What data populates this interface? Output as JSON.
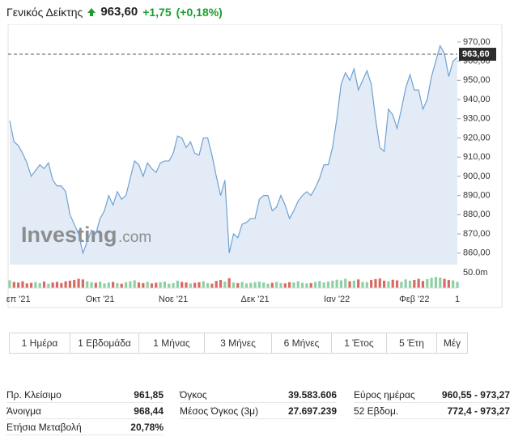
{
  "header": {
    "title": "Γενικός Δείκτης",
    "price": "963,60",
    "change": "+1,75",
    "change_pct": "(+0,18%)"
  },
  "chart_data": [
    {
      "type": "line",
      "color": "#6fa1d2",
      "fill": "#e3ecf6",
      "watermark": "Investing",
      "watermark_suffix": ".com",
      "current": {
        "value": 963.6,
        "label": "963,60"
      },
      "ylim": [
        854,
        975
      ],
      "yticks": [
        {
          "value": 860,
          "label": "860,00"
        },
        {
          "value": 870,
          "label": "870,00"
        },
        {
          "value": 880,
          "label": "880,00"
        },
        {
          "value": 890,
          "label": "890,00"
        },
        {
          "value": 900,
          "label": "900,00"
        },
        {
          "value": 910,
          "label": "910,00"
        },
        {
          "value": 920,
          "label": "920,00"
        },
        {
          "value": 930,
          "label": "930,00"
        },
        {
          "value": 940,
          "label": "940,00"
        },
        {
          "value": 950,
          "label": "950,00"
        },
        {
          "value": 960,
          "label": "960,00"
        },
        {
          "value": 970,
          "label": "970,00"
        }
      ],
      "categories": [
        null,
        null,
        "επ '21",
        null,
        null,
        null,
        null,
        null,
        null,
        null,
        null,
        null,
        null,
        null,
        null,
        null,
        null,
        null,
        null,
        null,
        null,
        "Οκτ '21",
        null,
        null,
        null,
        null,
        null,
        null,
        null,
        null,
        null,
        null,
        null,
        null,
        null,
        null,
        null,
        null,
        "Νοε '21",
        null,
        null,
        null,
        null,
        null,
        null,
        null,
        null,
        null,
        null,
        null,
        null,
        null,
        null,
        null,
        null,
        null,
        null,
        "Δεκ '21",
        null,
        null,
        null,
        null,
        null,
        null,
        null,
        null,
        null,
        null,
        null,
        null,
        null,
        null,
        null,
        null,
        null,
        null,
        "Ιαν '22",
        null,
        null,
        null,
        null,
        null,
        null,
        null,
        null,
        null,
        null,
        null,
        null,
        null,
        null,
        null,
        null,
        null,
        "Φεβ '22",
        null,
        null,
        null,
        null,
        null,
        null,
        null,
        null,
        null,
        "1"
      ],
      "values": [
        929,
        918,
        916,
        912,
        907,
        900,
        903,
        906,
        904,
        907,
        898,
        895,
        895,
        892,
        880,
        875,
        870,
        860,
        866,
        872,
        870,
        878,
        882,
        890,
        885,
        892,
        888,
        890,
        899,
        908,
        906,
        900,
        907,
        904,
        902,
        907,
        908,
        908,
        912,
        921,
        920,
        915,
        918,
        912,
        911,
        920,
        920,
        911,
        900,
        890,
        898,
        860,
        870,
        868,
        875,
        876,
        878,
        878,
        888,
        890,
        890,
        882,
        884,
        890,
        885,
        878,
        882,
        887,
        890,
        892,
        890,
        894,
        899,
        906,
        906,
        915,
        930,
        948,
        954,
        950,
        956,
        945,
        950,
        955,
        948,
        930,
        915,
        913,
        935,
        932,
        925,
        935,
        946,
        953,
        945,
        945,
        935,
        940,
        952,
        960,
        968,
        964,
        952,
        960,
        962
      ]
    },
    {
      "type": "bar",
      "ylim": [
        0,
        68
      ],
      "yticks": [
        {
          "value": 50,
          "label": "50.0m"
        }
      ],
      "values": [
        25,
        20,
        18,
        22,
        15,
        17,
        19,
        16,
        21,
        14,
        18,
        20,
        16,
        22,
        24,
        26,
        30,
        28,
        22,
        19,
        17,
        21,
        15,
        18,
        20,
        16,
        14,
        19,
        22,
        25,
        18,
        16,
        20,
        15,
        17,
        19,
        21,
        14,
        16,
        24,
        20,
        18,
        15,
        17,
        19,
        22,
        16,
        14,
        23,
        26,
        21,
        32,
        18,
        16,
        20,
        15,
        17,
        19,
        21,
        18,
        14,
        17,
        20,
        16,
        15,
        19,
        18,
        22,
        17,
        15,
        16,
        20,
        23,
        18,
        21,
        24,
        27,
        25,
        30,
        22,
        24,
        28,
        20,
        19,
        26,
        29,
        31,
        24,
        22,
        27,
        25,
        20,
        28,
        24,
        26,
        30,
        23,
        29,
        33,
        36,
        34,
        30,
        26,
        25,
        20
      ],
      "colors": [
        "#8fcfa6",
        "#d76b63",
        "#d76b63",
        "#d76b63",
        "#d76b63",
        "#d76b63",
        "#8fcfa6",
        "#8fcfa6",
        "#d76b63",
        "#8fcfa6",
        "#d76b63",
        "#d76b63",
        "#d76b63",
        "#d76b63",
        "#d76b63",
        "#d76b63",
        "#d76b63",
        "#d76b63",
        "#8fcfa6",
        "#8fcfa6",
        "#d76b63",
        "#8fcfa6",
        "#8fcfa6",
        "#8fcfa6",
        "#d76b63",
        "#8fcfa6",
        "#d76b63",
        "#8fcfa6",
        "#8fcfa6",
        "#8fcfa6",
        "#d76b63",
        "#d76b63",
        "#8fcfa6",
        "#d76b63",
        "#d76b63",
        "#8fcfa6",
        "#8fcfa6",
        "#8fcfa6",
        "#8fcfa6",
        "#8fcfa6",
        "#d76b63",
        "#d76b63",
        "#8fcfa6",
        "#d76b63",
        "#d76b63",
        "#8fcfa6",
        "#8fcfa6",
        "#d76b63",
        "#d76b63",
        "#d76b63",
        "#8fcfa6",
        "#d76b63",
        "#8fcfa6",
        "#d76b63",
        "#8fcfa6",
        "#8fcfa6",
        "#8fcfa6",
        "#8fcfa6",
        "#8fcfa6",
        "#8fcfa6",
        "#8fcfa6",
        "#d76b63",
        "#8fcfa6",
        "#8fcfa6",
        "#d76b63",
        "#d76b63",
        "#8fcfa6",
        "#8fcfa6",
        "#8fcfa6",
        "#8fcfa6",
        "#d76b63",
        "#8fcfa6",
        "#8fcfa6",
        "#8fcfa6",
        "#8fcfa6",
        "#8fcfa6",
        "#8fcfa6",
        "#8fcfa6",
        "#8fcfa6",
        "#d76b63",
        "#8fcfa6",
        "#d76b63",
        "#8fcfa6",
        "#8fcfa6",
        "#d76b63",
        "#d76b63",
        "#d76b63",
        "#d76b63",
        "#8fcfa6",
        "#d76b63",
        "#d76b63",
        "#8fcfa6",
        "#8fcfa6",
        "#8fcfa6",
        "#d76b63",
        "#d76b63",
        "#d76b63",
        "#8fcfa6",
        "#8fcfa6",
        "#8fcfa6",
        "#8fcfa6",
        "#d76b63",
        "#d76b63",
        "#8fcfa6",
        "#8fcfa6"
      ]
    }
  ],
  "range_buttons": [
    "1 Ημέρα",
    "1 Εβδομάδα",
    "1 Μήνας",
    "3 Μήνες",
    "6 Μήνες",
    "1 Έτος",
    "5 Έτη",
    "Μέγ"
  ],
  "stats": [
    [
      [
        "Πρ. Κλείσιμο",
        "961,85"
      ],
      [
        "Άνοιγμα",
        "968,44"
      ],
      [
        "Ετήσια Μεταβολή",
        "20,78%"
      ]
    ],
    [
      [
        "Όγκος",
        "39.583.606"
      ],
      [
        "Μέσος Όγκος (3μ)",
        "27.697.239"
      ]
    ],
    [
      [
        "Εύρος ημέρας",
        "960,55 - 973,27"
      ],
      [
        "52 Εβδομ.",
        "772,4 - 973,27"
      ]
    ]
  ]
}
